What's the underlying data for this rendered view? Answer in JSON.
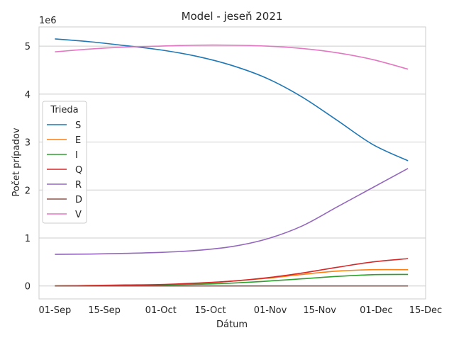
{
  "chart_data": {
    "type": "line",
    "title": "Model - jeseň 2021",
    "xlabel": "Dátum",
    "ylabel": "Počet prípadov",
    "y_multiplier_label": "1e6",
    "x_tick_labels": [
      "01-Sep",
      "15-Sep",
      "01-Oct",
      "15-Oct",
      "01-Nov",
      "15-Nov",
      "01-Dec",
      "15-Dec"
    ],
    "x_tick_days": [
      0,
      14,
      30,
      44,
      61,
      75,
      91,
      105
    ],
    "xlim_days": [
      -4.5,
      105
    ],
    "ylim": [
      -0.27,
      5.4
    ],
    "yticks": [
      0,
      1,
      2,
      3,
      4,
      5
    ],
    "y_tick_labels": [
      "0",
      "1",
      "2",
      "3",
      "4",
      "5"
    ],
    "grid": true,
    "legend": {
      "title": "Trieda",
      "position": "center-left"
    },
    "x_days": [
      0,
      10,
      20,
      30,
      40,
      50,
      60,
      70,
      80,
      90,
      100
    ],
    "series": [
      {
        "name": "S",
        "color": "#1f77b4",
        "values": [
          5.15,
          5.09,
          5.01,
          4.92,
          4.79,
          4.6,
          4.33,
          3.94,
          3.45,
          2.95,
          2.61
        ]
      },
      {
        "name": "E",
        "color": "#ff7f0e",
        "values": [
          0.0,
          0.01,
          0.015,
          0.025,
          0.05,
          0.1,
          0.16,
          0.24,
          0.31,
          0.34,
          0.34
        ]
      },
      {
        "name": "I",
        "color": "#2ca02c",
        "values": [
          0.0,
          0.005,
          0.01,
          0.02,
          0.035,
          0.06,
          0.1,
          0.15,
          0.2,
          0.235,
          0.24
        ]
      },
      {
        "name": "Q",
        "color": "#d62728",
        "values": [
          0.0,
          0.01,
          0.02,
          0.03,
          0.06,
          0.1,
          0.17,
          0.27,
          0.39,
          0.5,
          0.57
        ]
      },
      {
        "name": "R",
        "color": "#9467bd",
        "values": [
          0.66,
          0.665,
          0.68,
          0.7,
          0.74,
          0.82,
          0.98,
          1.25,
          1.65,
          2.05,
          2.45
        ]
      },
      {
        "name": "D",
        "color": "#8c564b",
        "values": [
          0.0,
          0.0,
          0.0,
          0.0,
          0.0,
          0.0,
          0.0,
          0.0,
          0.0,
          0.0,
          0.0
        ]
      },
      {
        "name": "V",
        "color": "#e377c2",
        "values": [
          4.88,
          4.94,
          4.98,
          5.0,
          5.02,
          5.02,
          5.0,
          4.95,
          4.86,
          4.72,
          4.52
        ]
      }
    ]
  }
}
